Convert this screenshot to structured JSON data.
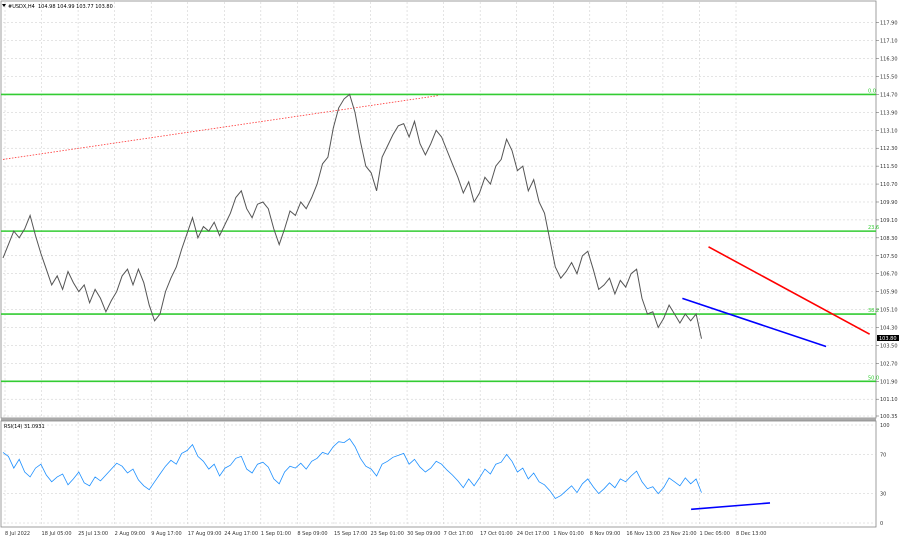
{
  "chart_data": [
    {
      "type": "line",
      "symbol_label": "#USDX,H4",
      "ohlc_readout": "104.98 104.99 103.77 103.80",
      "current_price_label": "103.80",
      "y_ticks": [
        "117.90",
        "117.10",
        "116.30",
        "115.50",
        "114.70",
        "113.90",
        "113.10",
        "112.30",
        "111.50",
        "110.70",
        "109.90",
        "109.10",
        "108.30",
        "107.50",
        "106.70",
        "105.90",
        "105.10",
        "104.30",
        "103.50",
        "102.70",
        "101.90",
        "101.10",
        "100.35"
      ],
      "ylim": [
        100.35,
        118.2
      ],
      "x_tick_labels": [
        "8 Jul 2022",
        "18 Jul 05:00",
        "25 Jul 13:00",
        "2 Aug 09:00",
        "9 Aug 17:00",
        "17 Aug 09:00",
        "24 Aug 17:00",
        "1 Sep 01:00",
        "8 Sep 09:00",
        "15 Sep 17:00",
        "23 Sep 01:00",
        "30 Sep 09:00",
        "7 Oct 17:00",
        "17 Oct 01:00",
        "24 Oct 17:00",
        "1 Nov 01:00",
        "8 Nov 09:00",
        "16 Nov 13:00",
        "23 Nov 21:00",
        "1 Dec 05:00",
        "8 Dec 13:00"
      ],
      "price_series": [
        107.4,
        108.0,
        108.6,
        108.3,
        108.7,
        109.3,
        108.4,
        107.6,
        106.9,
        106.2,
        106.6,
        106.0,
        106.8,
        106.3,
        105.9,
        106.2,
        105.4,
        106.0,
        105.6,
        105.0,
        105.5,
        105.9,
        106.6,
        106.9,
        106.2,
        106.9,
        106.3,
        105.3,
        104.6,
        104.9,
        105.9,
        106.5,
        107.0,
        107.8,
        108.5,
        109.2,
        108.3,
        108.8,
        108.6,
        109.0,
        108.4,
        108.9,
        109.4,
        110.1,
        110.4,
        109.6,
        109.2,
        109.8,
        109.9,
        109.6,
        108.7,
        108.0,
        108.7,
        109.5,
        109.3,
        109.9,
        109.6,
        110.1,
        110.7,
        111.6,
        111.9,
        113.2,
        114.1,
        114.5,
        114.7,
        113.9,
        112.6,
        111.5,
        111.2,
        110.4,
        111.9,
        112.4,
        112.9,
        113.3,
        113.4,
        112.8,
        113.5,
        112.5,
        112.0,
        112.5,
        113.1,
        112.8,
        112.2,
        111.6,
        111.0,
        110.3,
        110.8,
        109.9,
        110.3,
        111.0,
        110.7,
        111.5,
        111.8,
        112.7,
        112.2,
        111.3,
        111.5,
        110.4,
        110.9,
        109.9,
        109.4,
        108.2,
        107.0,
        106.5,
        106.8,
        107.2,
        106.7,
        107.5,
        107.7,
        106.9,
        106.0,
        106.2,
        106.5,
        105.8,
        106.4,
        106.1,
        106.7,
        106.9,
        105.6,
        104.9,
        105.0,
        104.3,
        104.7,
        105.3,
        104.9,
        104.5,
        104.9,
        104.6,
        104.9,
        103.8
      ],
      "horizontal_levels": [
        {
          "value": 114.7,
          "label": "0.0",
          "color": "#33cc33"
        },
        {
          "value": 108.6,
          "label": "23.6",
          "color": "#33cc33"
        },
        {
          "value": 104.9,
          "label": "38.2",
          "color": "#33cc33"
        },
        {
          "value": 101.9,
          "label": "50.0",
          "color": "#33cc33"
        }
      ],
      "trendlines": [
        {
          "name": "dotted-fib-line",
          "x0": 0.0,
          "y0": 111.8,
          "x1": 0.5,
          "y1": 114.65,
          "color": "#ff3333",
          "style": "dotted"
        },
        {
          "name": "red-resistance-line",
          "x0": 0.81,
          "y0": 107.9,
          "x1": 0.995,
          "y1": 104.0,
          "color": "#ff0000",
          "style": "solid"
        },
        {
          "name": "blue-support-line",
          "x0": 0.78,
          "y0": 105.6,
          "x1": 0.945,
          "y1": 103.45,
          "color": "#0000ff",
          "style": "solid"
        }
      ],
      "grid": true,
      "line_color": "#555555"
    },
    {
      "type": "line",
      "indicator_label": "RSI(14) 31.0931",
      "y_ticks": [
        "100",
        "70",
        "30",
        "0"
      ],
      "ylim": [
        0,
        100
      ],
      "rsi_series": [
        72,
        68,
        56,
        65,
        52,
        47,
        56,
        60,
        49,
        42,
        47,
        50,
        39,
        45,
        52,
        41,
        38,
        47,
        43,
        49,
        55,
        61,
        58,
        51,
        55,
        44,
        38,
        34,
        42,
        50,
        58,
        64,
        60,
        71,
        74,
        80,
        68,
        63,
        55,
        60,
        48,
        56,
        59,
        66,
        68,
        55,
        51,
        60,
        62,
        57,
        45,
        40,
        52,
        58,
        56,
        61,
        55,
        63,
        66,
        72,
        70,
        78,
        83,
        82,
        86,
        78,
        66,
        58,
        55,
        48,
        60,
        63,
        67,
        69,
        71,
        60,
        65,
        57,
        52,
        56,
        63,
        60,
        54,
        49,
        43,
        36,
        45,
        38,
        46,
        55,
        50,
        60,
        62,
        70,
        63,
        52,
        56,
        45,
        51,
        42,
        39,
        33,
        25,
        28,
        33,
        38,
        31,
        40,
        45,
        37,
        30,
        35,
        41,
        36,
        45,
        42,
        48,
        53,
        42,
        35,
        37,
        30,
        36,
        46,
        42,
        38,
        46,
        40,
        45,
        31
      ],
      "trendlines": [
        {
          "name": "rsi-support-line",
          "x0": 0.79,
          "y0": 14.0,
          "x1": 1.07,
          "y1": 34.0,
          "color": "#0000ff",
          "style": "solid"
        }
      ],
      "line_color": "#1e90ff",
      "grid": true
    }
  ]
}
